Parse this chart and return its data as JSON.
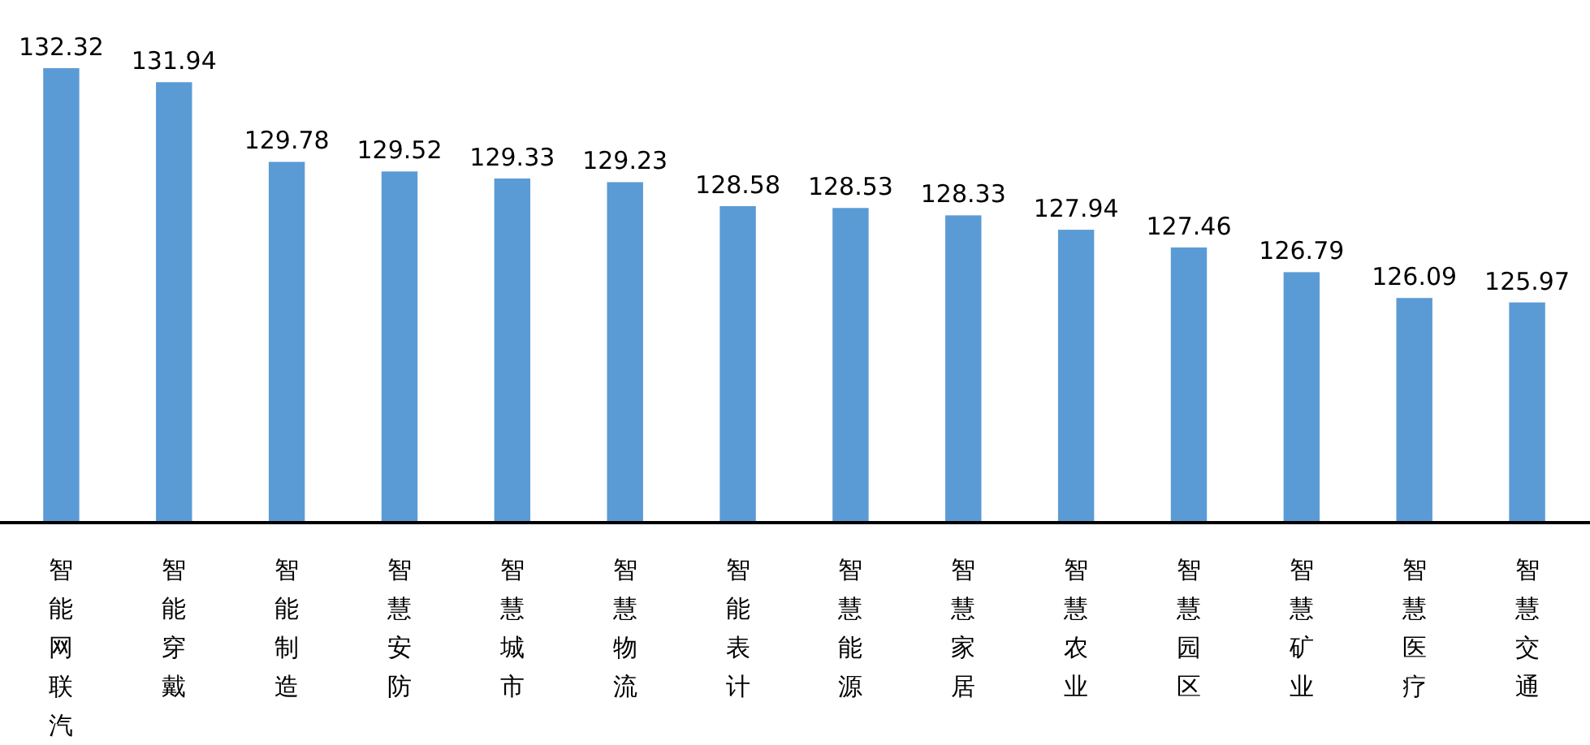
{
  "chart_data": {
    "type": "bar",
    "categories": [
      "智能网联汽",
      "智能穿戴",
      "智能制造",
      "智慧安防",
      "智慧城市",
      "智慧物流",
      "智能表计",
      "智慧能源",
      "智慧家居",
      "智慧农业",
      "智慧园区",
      "智慧矿业",
      "智慧医疗",
      "智慧交通"
    ],
    "values": [
      132.32,
      131.94,
      129.78,
      129.52,
      129.33,
      129.23,
      128.58,
      128.53,
      128.33,
      127.94,
      127.46,
      126.79,
      126.09,
      125.97
    ],
    "color": "#5b9bd5",
    "ylim": [
      120,
      132.32
    ],
    "data_labels": true,
    "tick_labels": "x"
  }
}
